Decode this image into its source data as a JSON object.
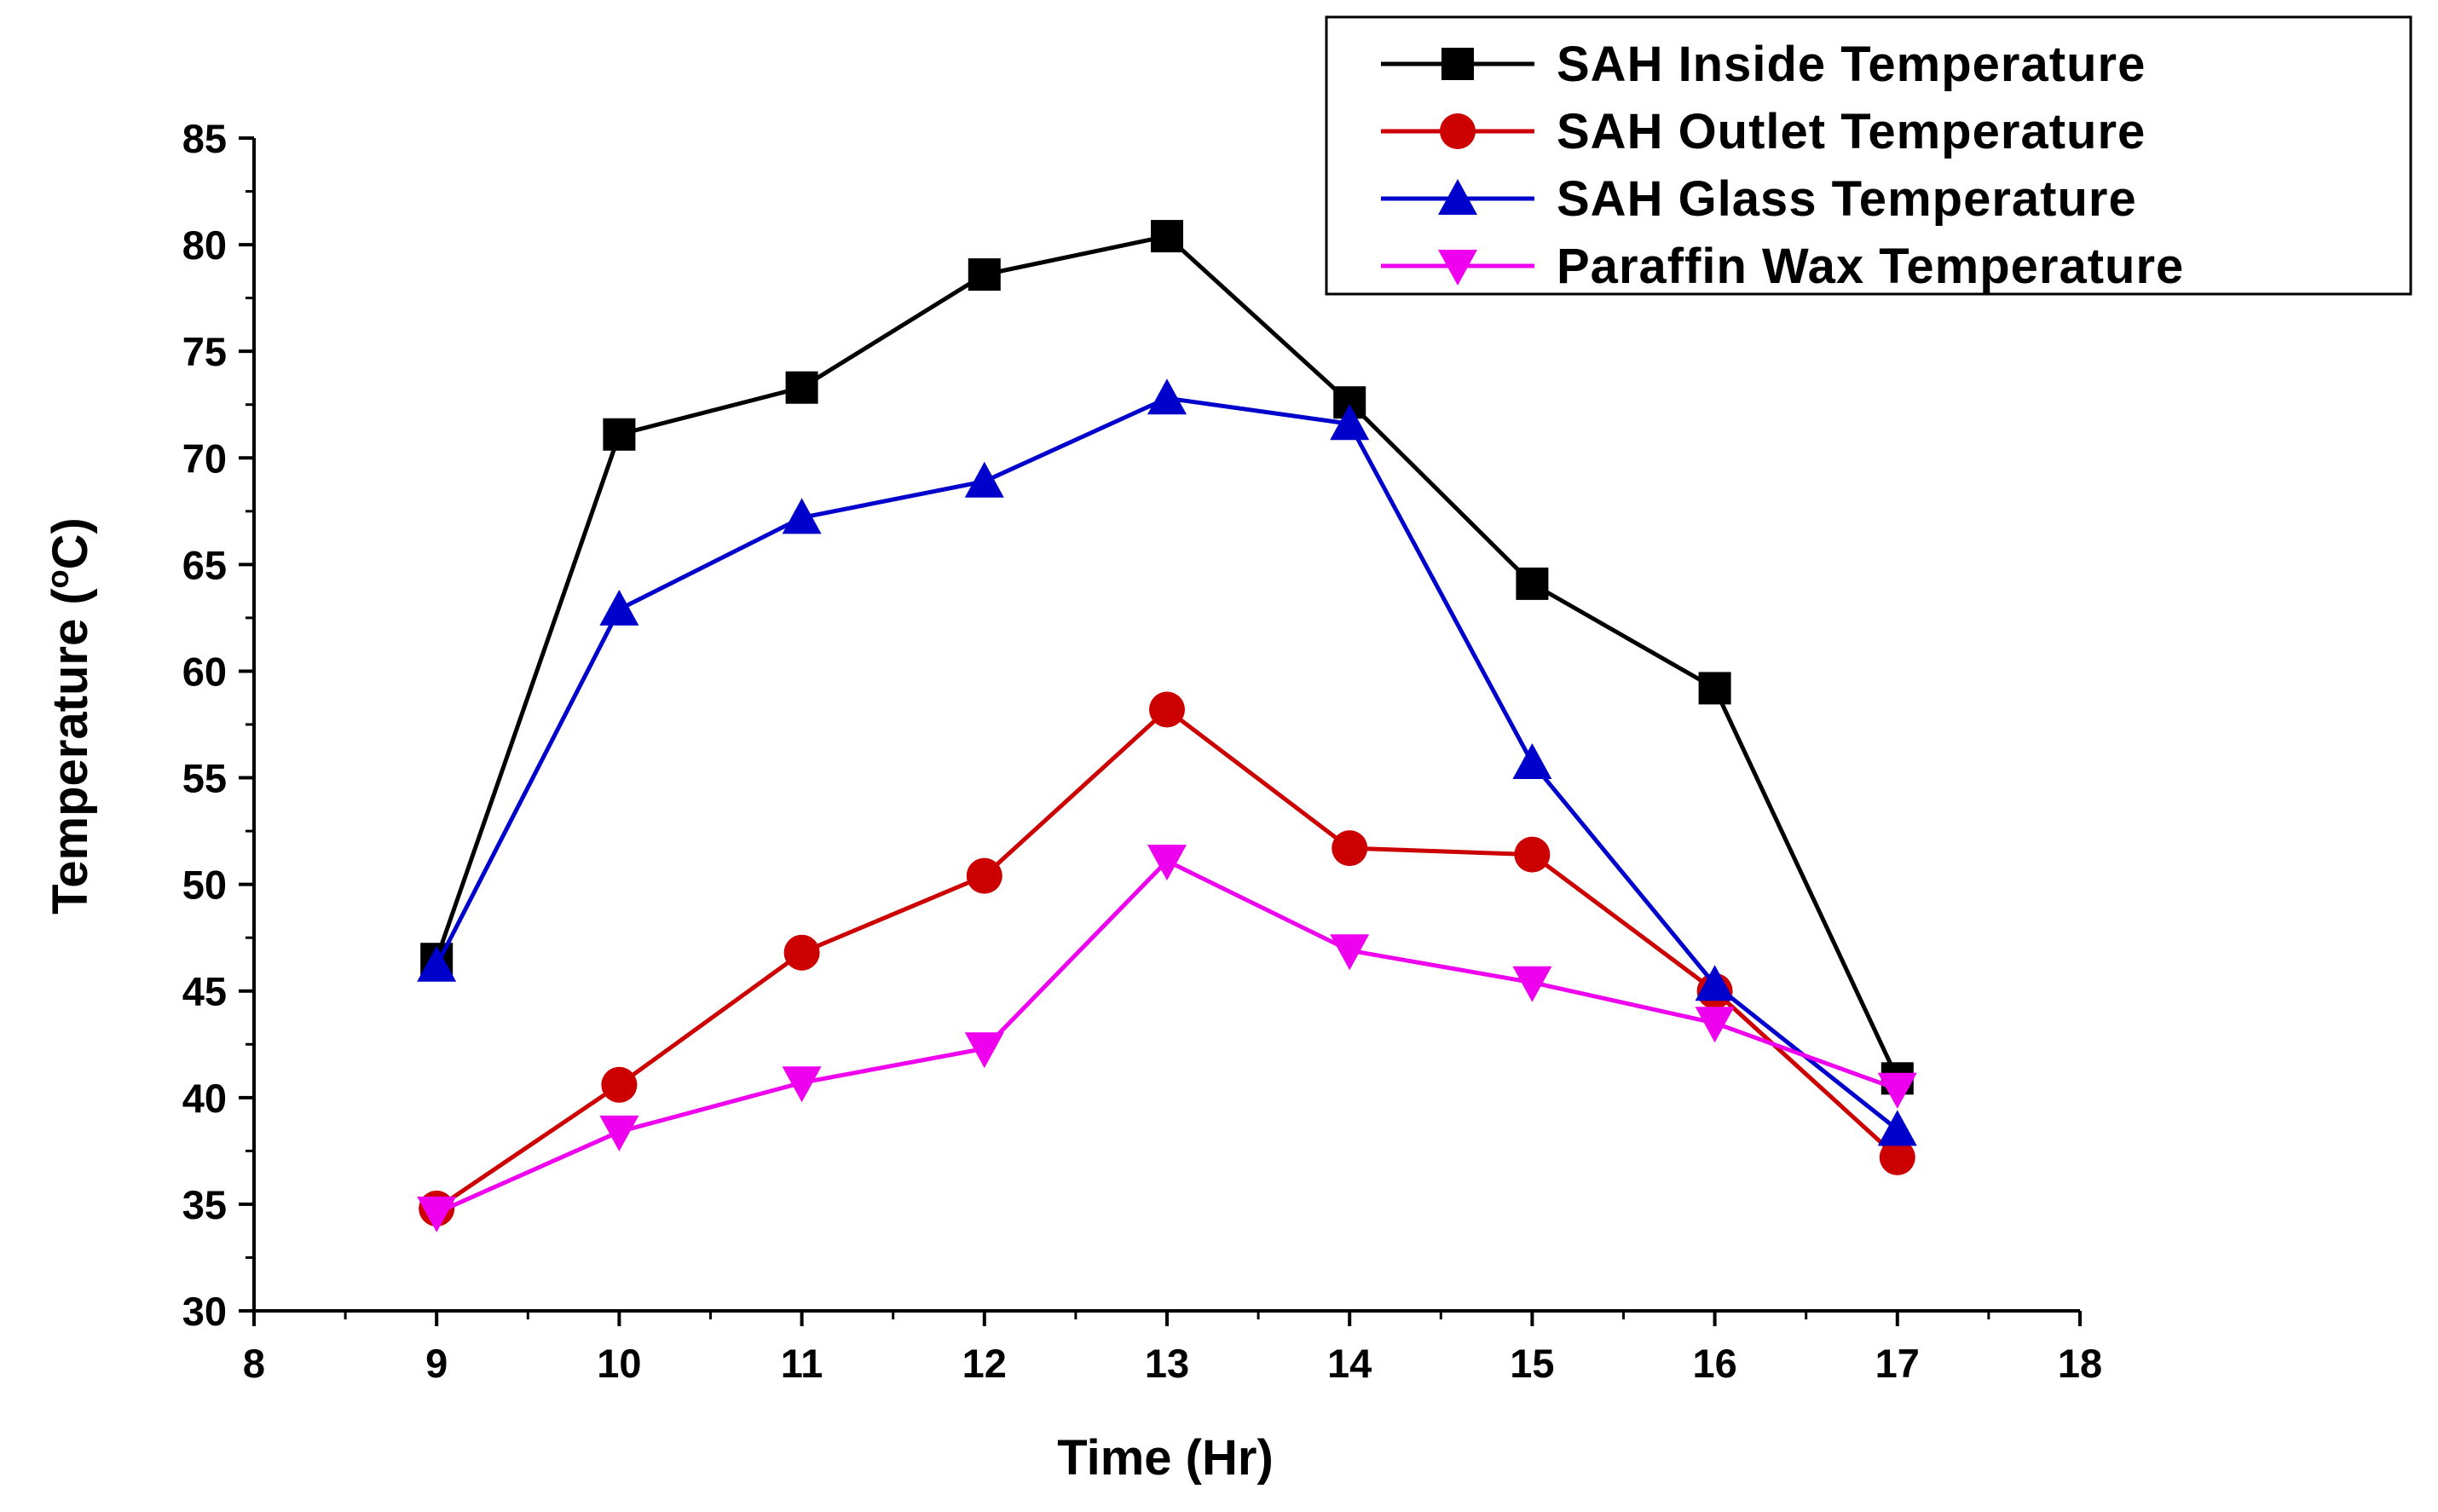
{
  "chart_data": {
    "type": "line",
    "title": "",
    "xlabel": "Time (Hr)",
    "ylabel": "Temperature (",
    "ylabel_sup": "o",
    "ylabel_unit": "C)",
    "xlim": [
      8,
      18
    ],
    "ylim": [
      30,
      85
    ],
    "x_ticks": [
      8,
      9,
      10,
      11,
      12,
      13,
      14,
      15,
      16,
      17,
      18
    ],
    "y_ticks": [
      30,
      35,
      40,
      45,
      50,
      55,
      60,
      65,
      70,
      75,
      80,
      85
    ],
    "x": [
      9,
      10,
      11,
      12,
      13,
      14,
      15,
      16,
      17
    ],
    "legend_position": "top-right",
    "series": [
      {
        "name": "SAH Inside Temperature",
        "color": "#000000",
        "marker": "square",
        "values": [
          46.5,
          71.1,
          73.3,
          78.6,
          80.4,
          72.6,
          64.1,
          59.2,
          40.9
        ]
      },
      {
        "name": "SAH Outlet Temperature",
        "color": "#cc0000",
        "marker": "circle",
        "values": [
          34.8,
          40.6,
          46.8,
          50.4,
          58.2,
          51.7,
          51.4,
          45.0,
          37.2
        ]
      },
      {
        "name": "SAH Glass Temperature",
        "color": "#0000cc",
        "marker": "triangle-up",
        "values": [
          46.2,
          62.9,
          67.2,
          68.9,
          72.8,
          71.6,
          55.7,
          45.3,
          38.5
        ]
      },
      {
        "name": "Paraffin Wax Temperature",
        "color": "#ee00ee",
        "marker": "triangle-down",
        "values": [
          34.6,
          38.4,
          40.7,
          42.3,
          51.1,
          46.9,
          45.4,
          43.5,
          40.4
        ]
      }
    ]
  }
}
